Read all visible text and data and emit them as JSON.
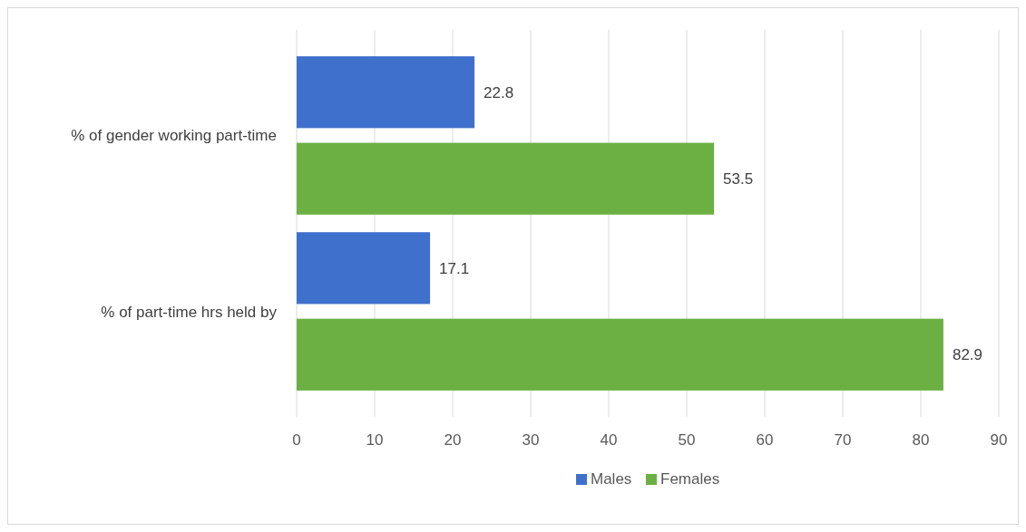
{
  "chart_data": {
    "type": "bar",
    "orientation": "horizontal",
    "categories": [
      "% of gender working part-time",
      "% of part-time hrs held by"
    ],
    "series": [
      {
        "name": "Males",
        "color": "#3f70cc",
        "values": [
          22.8,
          17.1
        ]
      },
      {
        "name": "Females",
        "color": "#6cb043",
        "values": [
          53.5,
          82.9
        ]
      }
    ],
    "xlim": [
      0,
      90
    ],
    "xticks": [
      0,
      10,
      20,
      30,
      40,
      50,
      60,
      70,
      80,
      90
    ],
    "grid": "x",
    "legend": "bottom",
    "data_labels": true
  }
}
